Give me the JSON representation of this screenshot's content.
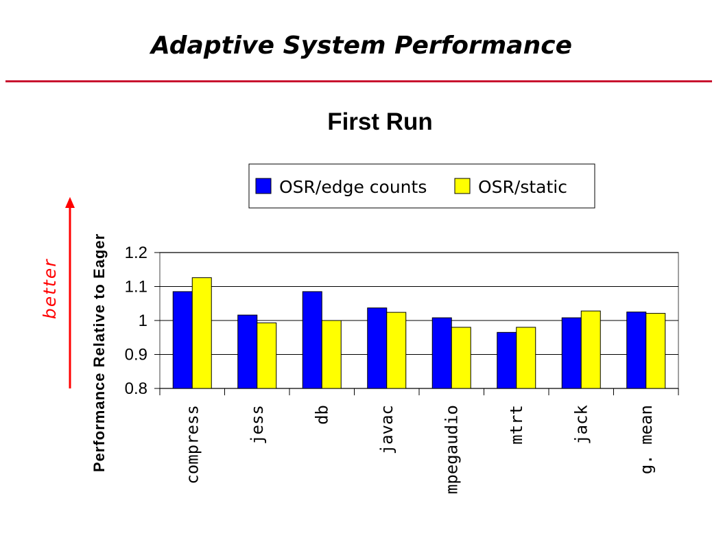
{
  "slide": {
    "title": "Adaptive System Performance",
    "accent_color": "#c8102e"
  },
  "annotation": {
    "label": "better",
    "color": "#ff0000"
  },
  "chart_data": {
    "type": "bar",
    "title": "First Run",
    "xlabel": "",
    "ylabel": "Performance Relative to Eager",
    "ylim": [
      0.8,
      1.2
    ],
    "yticks": [
      0.8,
      0.9,
      1,
      1.1,
      1.2
    ],
    "ytick_labels": [
      "0.8",
      "0.9",
      "1",
      "1.1",
      "1.2"
    ],
    "grid": true,
    "legend_position": "top",
    "categories": [
      "compress",
      "jess",
      "db",
      "javac",
      "mpegaudio",
      "mtrt",
      "jack",
      "g. mean"
    ],
    "series": [
      {
        "name": "OSR/edge counts",
        "color": "#0000ff",
        "values": [
          1.085,
          1.016,
          1.085,
          1.037,
          1.008,
          0.965,
          1.008,
          1.025
        ]
      },
      {
        "name": "OSR/static",
        "color": "#ffff00",
        "values": [
          1.126,
          0.993,
          1.0,
          1.024,
          0.98,
          0.98,
          1.028,
          1.021
        ]
      }
    ]
  }
}
